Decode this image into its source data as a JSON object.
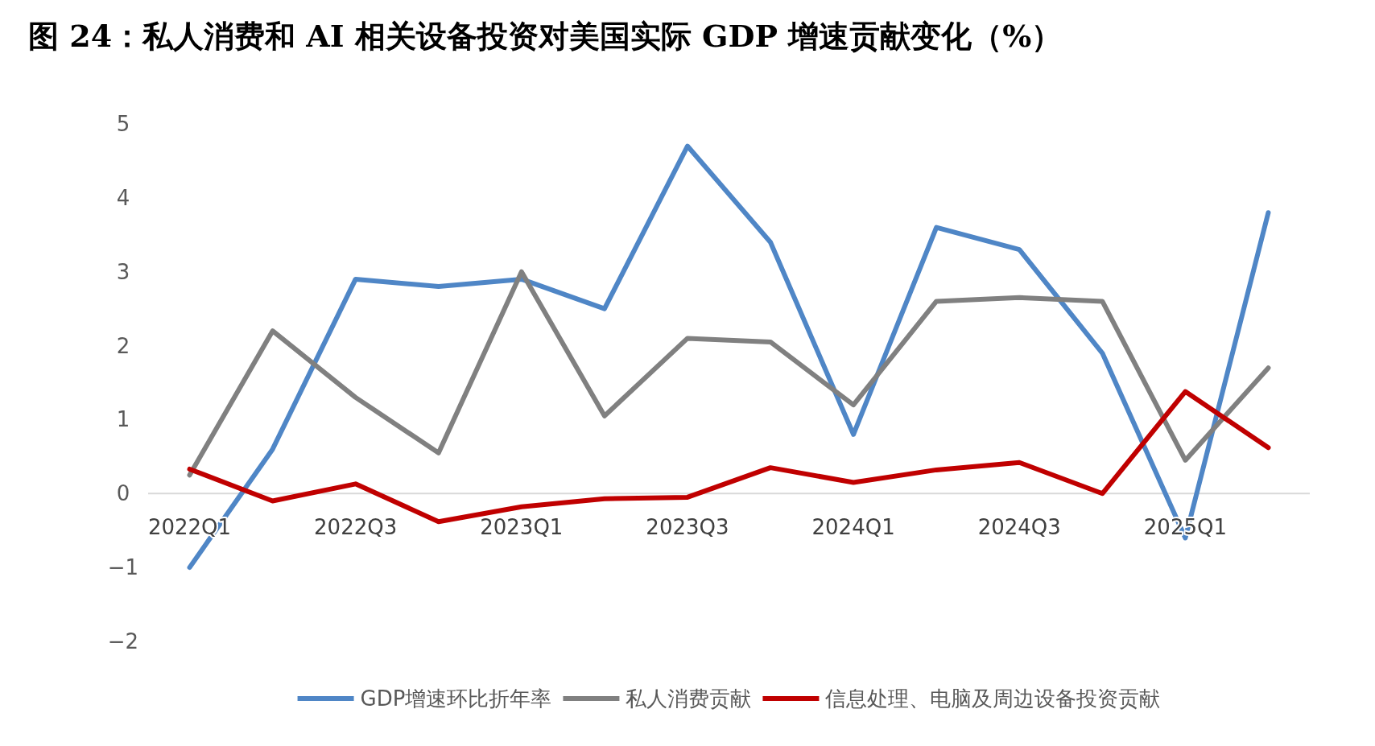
{
  "chart_data": {
    "type": "line",
    "title": "图 24：私人消费和 AI 相关设备投资对美国实际 GDP 增速贡献变化（%）",
    "categories": [
      "2022Q1",
      null,
      "2022Q3",
      null,
      "2023Q1",
      null,
      "2023Q3",
      null,
      "2024Q1",
      null,
      "2024Q3",
      null,
      "2025Q1",
      null
    ],
    "series": [
      {
        "name": "GDP增速环比折年率",
        "color": "#4f86c6",
        "values": [
          -1.0,
          0.6,
          2.9,
          2.8,
          2.9,
          2.5,
          4.7,
          3.4,
          0.8,
          3.6,
          3.3,
          1.9,
          -0.6,
          3.8
        ]
      },
      {
        "name": "私人消费贡献",
        "color": "#808080",
        "values": [
          0.25,
          2.2,
          1.3,
          0.55,
          3.0,
          1.05,
          2.1,
          2.05,
          1.2,
          2.6,
          2.65,
          2.6,
          0.45,
          1.7
        ]
      },
      {
        "name": "信息处理、电脑及周边设备投资贡献",
        "color": "#c00000",
        "values": [
          0.33,
          -0.1,
          0.13,
          -0.38,
          -0.18,
          -0.07,
          -0.05,
          0.35,
          0.15,
          0.32,
          0.42,
          0.0,
          1.38,
          0.62
        ]
      }
    ],
    "ylim": [
      -2,
      5
    ],
    "yticks": [
      {
        "value": -2,
        "label": "−2"
      },
      {
        "value": -1,
        "label": "−1"
      },
      0,
      1,
      2,
      3,
      4,
      5
    ],
    "legend": "bottom"
  }
}
